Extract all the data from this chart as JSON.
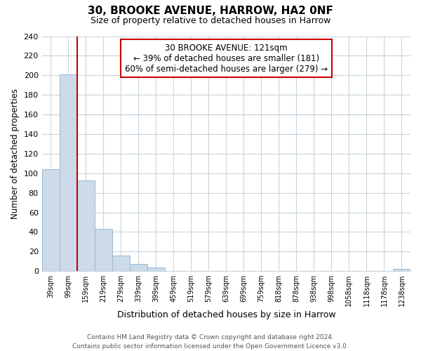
{
  "title": "30, BROOKE AVENUE, HARROW, HA2 0NF",
  "subtitle": "Size of property relative to detached houses in Harrow",
  "xlabel": "Distribution of detached houses by size in Harrow",
  "ylabel": "Number of detached properties",
  "categories": [
    "39sqm",
    "99sqm",
    "159sqm",
    "219sqm",
    "279sqm",
    "339sqm",
    "399sqm",
    "459sqm",
    "519sqm",
    "579sqm",
    "639sqm",
    "699sqm",
    "759sqm",
    "818sqm",
    "878sqm",
    "938sqm",
    "998sqm",
    "1058sqm",
    "1118sqm",
    "1178sqm",
    "1238sqm"
  ],
  "values": [
    104,
    201,
    93,
    43,
    16,
    7,
    4,
    0,
    0,
    0,
    0,
    0,
    0,
    0,
    0,
    0,
    0,
    0,
    0,
    0,
    2
  ],
  "bar_color": "#ccdaea",
  "bar_edge_color": "#99bbcc",
  "property_line_x": 1.5,
  "property_line_color": "#cc0000",
  "annotation_line1": "30 BROOKE AVENUE: 121sqm",
  "annotation_line2": "← 39% of detached houses are smaller (181)",
  "annotation_line3": "60% of semi-detached houses are larger (279) →",
  "annotation_box_color": "#ffffff",
  "annotation_box_edge_color": "#cc0000",
  "ylim": [
    0,
    240
  ],
  "yticks": [
    0,
    20,
    40,
    60,
    80,
    100,
    120,
    140,
    160,
    180,
    200,
    220,
    240
  ],
  "footer_text": "Contains HM Land Registry data © Crown copyright and database right 2024.\nContains public sector information licensed under the Open Government Licence v3.0.",
  "background_color": "#ffffff",
  "grid_color": "#c8d4dc"
}
